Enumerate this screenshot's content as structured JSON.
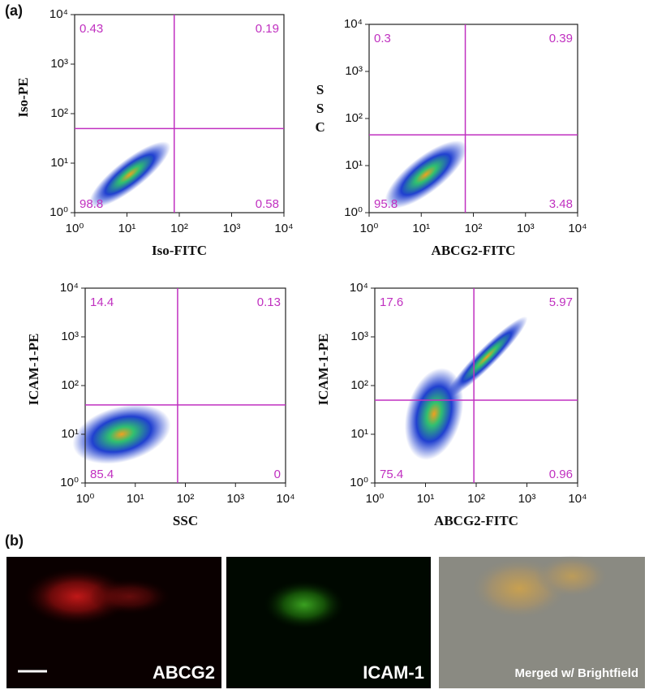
{
  "figure_a": {
    "label": "(a)",
    "ticks": [
      {
        "value": 1,
        "label": "10⁰"
      },
      {
        "value": 10,
        "label": "10¹"
      },
      {
        "value": 100,
        "label": "10²"
      },
      {
        "value": 1000,
        "label": "10³"
      },
      {
        "value": 10000,
        "label": "10⁴"
      }
    ],
    "xlim": [
      1,
      10000
    ],
    "ylim": [
      1,
      10000
    ],
    "log_scale": true,
    "gate_color": "#c030c0",
    "plots": [
      {
        "xlabel": "Iso-FITC",
        "ylabel": "Iso-PE",
        "ylabel_orientation": "rotated",
        "gate_x": 80,
        "gate_y": 50,
        "quadrants": {
          "upper_left": 0.43,
          "upper_right": 0.19,
          "lower_left": 98.8,
          "lower_right": 0.58
        }
      },
      {
        "xlabel": "ABCG2-FITC",
        "ylabel": "SSC",
        "ylabel_orientation": "upright",
        "gate_x": 70,
        "gate_y": 45,
        "quadrants": {
          "upper_left": 0.3,
          "upper_right": 0.39,
          "lower_left": 95.8,
          "lower_right": 3.48
        }
      },
      {
        "xlabel": "SSC",
        "ylabel": "ICAM-1-PE",
        "ylabel_orientation": "rotated",
        "gate_x": 70,
        "gate_y": 40,
        "quadrants": {
          "upper_left": 14.4,
          "upper_right": 0.13,
          "lower_left": 85.4,
          "lower_right": 0
        }
      },
      {
        "xlabel": "ABCG2-FITC",
        "ylabel": "ICAM-1-PE",
        "ylabel_orientation": "rotated",
        "gate_x": 90,
        "gate_y": 50,
        "quadrants": {
          "upper_left": 17.6,
          "upper_right": 5.97,
          "lower_left": 75.4,
          "lower_right": 0.96
        }
      }
    ]
  },
  "figure_b": {
    "label": "(b)",
    "images": [
      {
        "label": "ABCG2"
      },
      {
        "label": "ICAM-1"
      },
      {
        "label": "Merged w/ Brightfield"
      }
    ]
  }
}
